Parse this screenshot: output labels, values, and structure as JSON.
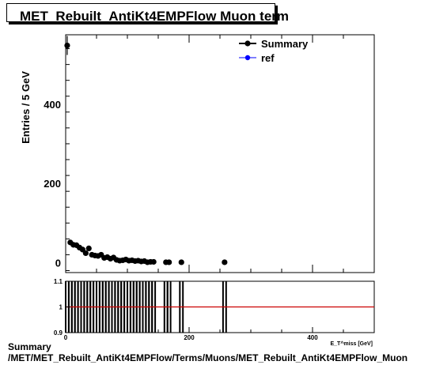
{
  "chart_data": {
    "type": "scatter",
    "title": "MET_Rebuilt_AntiKt4EMPFlow Muon term",
    "ylabel": "Entries / 5 GeV",
    "xlabel": "E_T^miss [GeV]",
    "xlim": [
      0,
      500
    ],
    "ylim": [
      -25,
      575
    ],
    "y_ticks": [
      0,
      200,
      400
    ],
    "x_ticks": [
      0,
      200,
      400
    ],
    "legend_position": "top-right",
    "series": [
      {
        "name": "Summary",
        "color": "#000000",
        "points": [
          [
            2.5,
            548
          ],
          [
            7.5,
            51
          ],
          [
            12.5,
            45
          ],
          [
            17.5,
            44
          ],
          [
            22.5,
            38
          ],
          [
            27.5,
            33
          ],
          [
            32.5,
            24
          ],
          [
            37.5,
            36
          ],
          [
            42.5,
            20
          ],
          [
            47.5,
            18
          ],
          [
            52.5,
            17
          ],
          [
            57.5,
            20
          ],
          [
            62.5,
            12
          ],
          [
            67.5,
            14
          ],
          [
            72.5,
            10
          ],
          [
            77.5,
            13
          ],
          [
            82.5,
            7
          ],
          [
            87.5,
            5
          ],
          [
            92.5,
            6
          ],
          [
            97.5,
            8
          ],
          [
            102.5,
            5
          ],
          [
            107.5,
            6
          ],
          [
            112.5,
            4
          ],
          [
            117.5,
            5
          ],
          [
            122.5,
            3
          ],
          [
            127.5,
            4
          ],
          [
            132.5,
            1
          ],
          [
            137.5,
            2
          ],
          [
            142.5,
            2
          ],
          [
            162.5,
            1
          ],
          [
            167.5,
            1
          ],
          [
            187.5,
            1
          ],
          [
            257.5,
            1
          ]
        ]
      },
      {
        "name": "ref",
        "color": "#0000ff",
        "points": []
      }
    ],
    "ratio": {
      "ylim": [
        0.9,
        1.1
      ],
      "y_ticks": [
        "0.9",
        "1",
        "1.1"
      ],
      "x_ticks": [
        0,
        200,
        400
      ],
      "reference_line": 1,
      "bin_edges": [
        [
          0,
          5
        ],
        [
          5,
          10
        ],
        [
          10,
          15
        ],
        [
          15,
          20
        ],
        [
          20,
          25
        ],
        [
          25,
          30
        ],
        [
          30,
          35
        ],
        [
          35,
          40
        ],
        [
          40,
          45
        ],
        [
          45,
          50
        ],
        [
          50,
          55
        ],
        [
          55,
          60
        ],
        [
          60,
          65
        ],
        [
          65,
          70
        ],
        [
          70,
          75
        ],
        [
          75,
          80
        ],
        [
          80,
          85
        ],
        [
          85,
          90
        ],
        [
          90,
          95
        ],
        [
          95,
          100
        ],
        [
          100,
          105
        ],
        [
          105,
          110
        ],
        [
          110,
          115
        ],
        [
          115,
          120
        ],
        [
          120,
          125
        ],
        [
          125,
          130
        ],
        [
          130,
          135
        ],
        [
          135,
          140
        ],
        [
          140,
          145
        ],
        [
          160,
          165
        ],
        [
          165,
          170
        ],
        [
          185,
          190
        ],
        [
          255,
          260
        ]
      ]
    }
  },
  "footer": {
    "line1": "Summary",
    "line2": "/MET/MET_Rebuilt_AntiKt4EMPFlow/Terms/Muons/MET_Rebuilt_AntiKt4EMPFlow_Muon"
  }
}
